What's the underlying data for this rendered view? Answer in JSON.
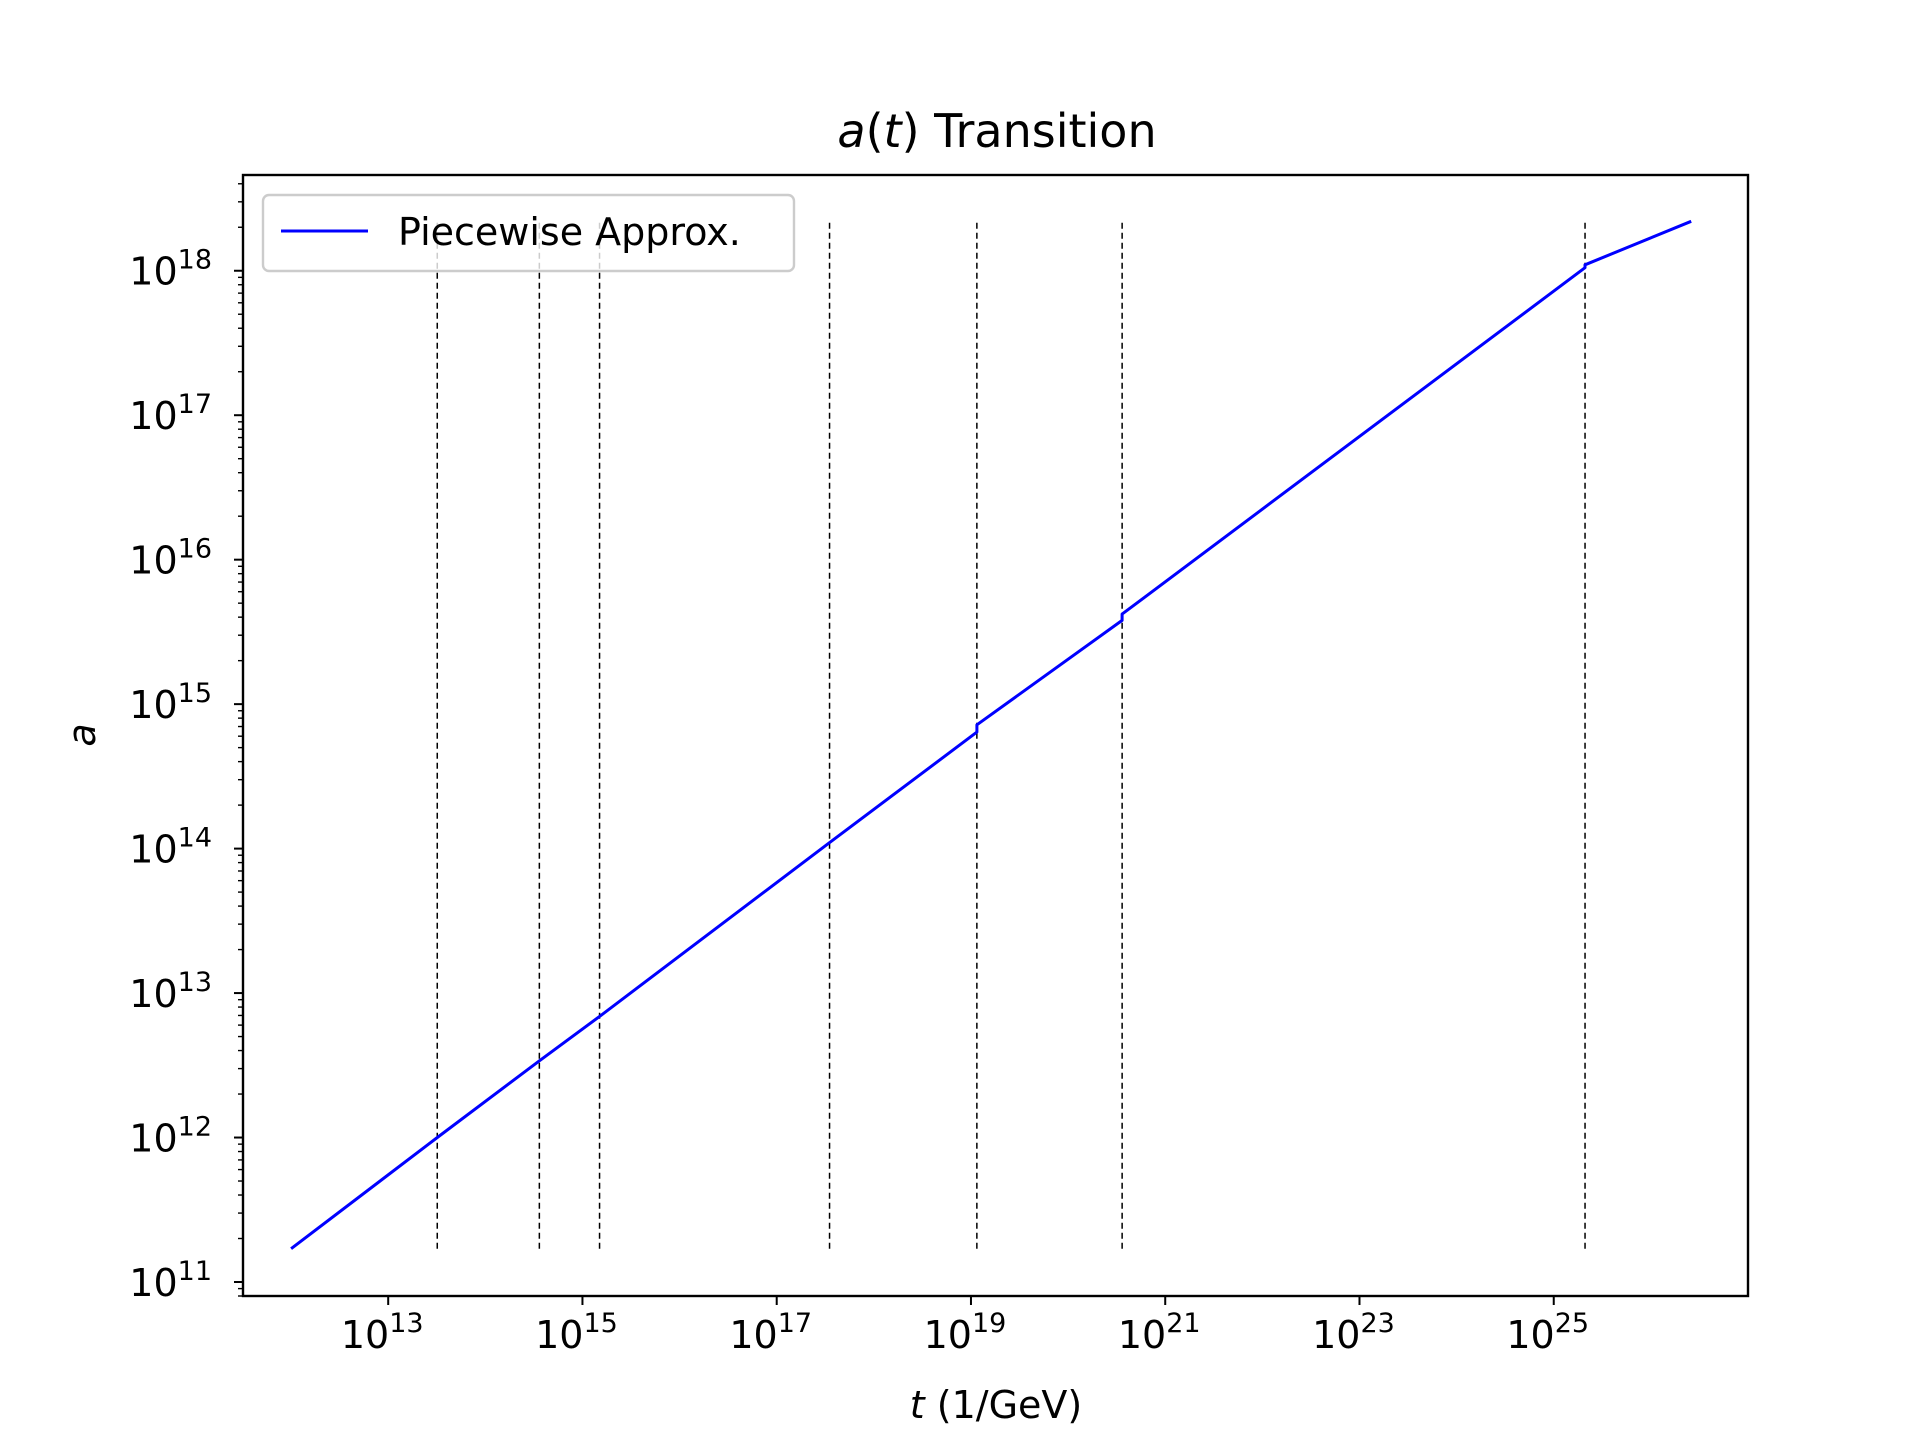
{
  "chart_data": {
    "type": "line",
    "title": {
      "italic": "a",
      "open": "(",
      "italic_arg": "t",
      "rest": ") Transition"
    },
    "xlabel": {
      "italic": "t",
      "rest": " (1/GeV)"
    },
    "ylabel": "a",
    "x_scale": "log",
    "y_scale": "log",
    "xlim": [
      320000000000.0,
      1e+27
    ],
    "ylim": [
      80000000000.0,
      4.6e+18
    ],
    "grid": false,
    "legend_position": "top-left",
    "x_ticks": [
      {
        "value": 10000000000000.0,
        "base": "10",
        "exp": "13"
      },
      {
        "value": 1000000000000000.0,
        "base": "10",
        "exp": "15"
      },
      {
        "value": 1e+17,
        "base": "10",
        "exp": "17"
      },
      {
        "value": 1e+19,
        "base": "10",
        "exp": "19"
      },
      {
        "value": 1e+21,
        "base": "10",
        "exp": "21"
      },
      {
        "value": 1e+23,
        "base": "10",
        "exp": "23"
      },
      {
        "value": 1e+25,
        "base": "10",
        "exp": "25"
      }
    ],
    "y_ticks": [
      {
        "value": 100000000000.0,
        "base": "10",
        "exp": "11"
      },
      {
        "value": 1000000000000.0,
        "base": "10",
        "exp": "12"
      },
      {
        "value": 10000000000000.0,
        "base": "10",
        "exp": "13"
      },
      {
        "value": 100000000000000.0,
        "base": "10",
        "exp": "14"
      },
      {
        "value": 1000000000000000.0,
        "base": "10",
        "exp": "15"
      },
      {
        "value": 1e+16,
        "base": "10",
        "exp": "16"
      },
      {
        "value": 1e+17,
        "base": "10",
        "exp": "17"
      },
      {
        "value": 1e+18,
        "base": "10",
        "exp": "18"
      }
    ],
    "series": [
      {
        "name": "Piecewise Approx.",
        "color": "#0000ff",
        "x": [
          1000000000000.0,
          32000000000000.0,
          360000000000000.0,
          1500000000000000.0,
          3.5e+17,
          1.15e+19,
          1.15e+19,
          3.6e+20,
          3.6e+20,
          2.1e+25,
          2.1e+25,
          2.6e+26
        ],
        "y": [
          170000000000.0,
          1000000000000.0,
          3400000000000.0,
          6900000000000.0,
          110000000000000.0,
          640000000000000.0,
          720000000000000.0,
          3800000000000000.0,
          4200000000000000.0,
          1.05e+18,
          1.1e+18,
          2.2e+18
        ]
      }
    ],
    "vlines": {
      "style": "dashed",
      "color": "#000000",
      "x": [
        32000000000000.0,
        360000000000000.0,
        1500000000000000.0,
        3.5e+17,
        1.15e+19,
        3.6e+20,
        2.1e+25
      ],
      "y_range": [
        170000000000.0,
        2.2e+18
      ]
    }
  }
}
